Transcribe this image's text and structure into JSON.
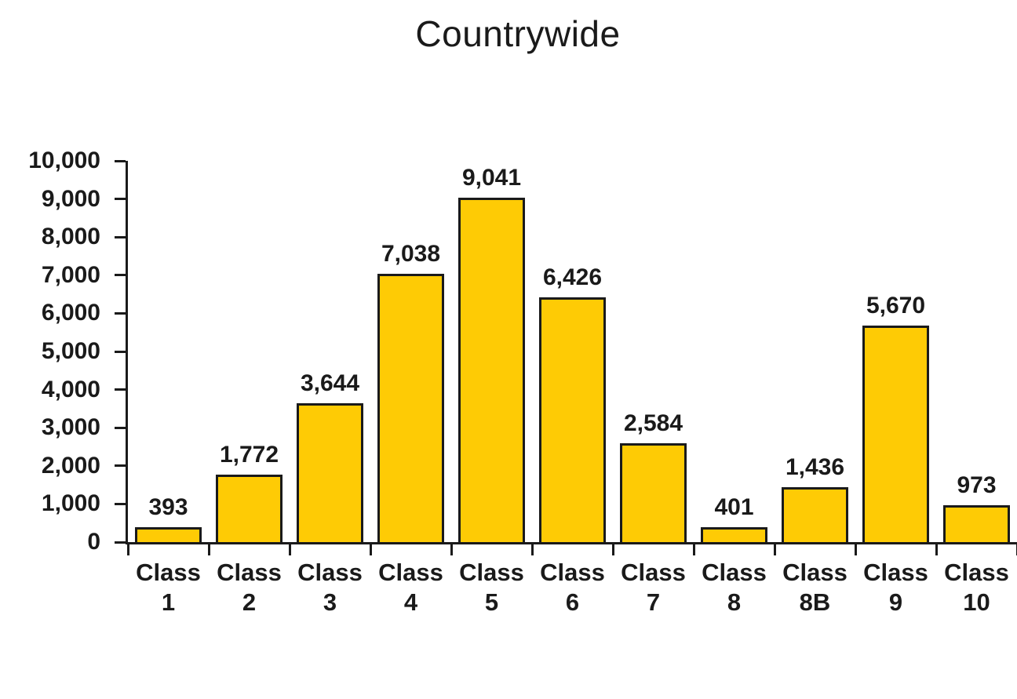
{
  "chart_data": {
    "type": "bar",
    "title": "Countrywide",
    "categories": [
      "Class 1",
      "Class 2",
      "Class 3",
      "Class 4",
      "Class 5",
      "Class 6",
      "Class 7",
      "Class 8",
      "Class 8B",
      "Class 9",
      "Class 10"
    ],
    "category_line1": [
      "Class",
      "Class",
      "Class",
      "Class",
      "Class",
      "Class",
      "Class",
      "Class",
      "Class",
      "Class",
      "Class"
    ],
    "category_line2": [
      "1",
      "2",
      "3",
      "4",
      "5",
      "6",
      "7",
      "8",
      "8B",
      "9",
      "10"
    ],
    "values": [
      393,
      1772,
      3644,
      7038,
      9041,
      6426,
      2584,
      401,
      1436,
      5670,
      973
    ],
    "value_labels": [
      "393",
      "1,772",
      "3,644",
      "7,038",
      "9,041",
      "6,426",
      "2,584",
      "401",
      "1,436",
      "5,670",
      "973"
    ],
    "xlabel": "",
    "ylabel": "",
    "ylim": [
      0,
      10000
    ],
    "ytick_interval": 1000,
    "ytick_labels": [
      "0",
      "1,000",
      "2,000",
      "3,000",
      "4,000",
      "5,000",
      "6,000",
      "7,000",
      "8,000",
      "9,000",
      "10,000"
    ],
    "grid": false,
    "legend": false,
    "data_labels": true,
    "bar_color": "#FECB05",
    "bar_border_color": "#1a1a1a",
    "axis_color": "#1a1a1a",
    "text_color": "#1a1a1a",
    "background_color": "#FFFFFF"
  }
}
